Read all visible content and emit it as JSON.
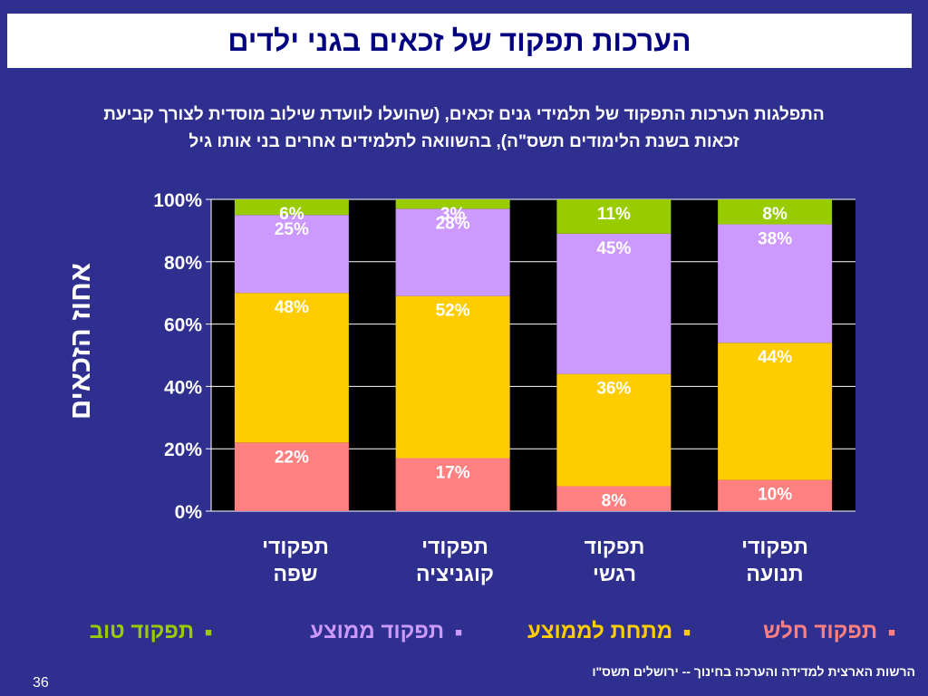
{
  "slide": {
    "title": "הערכות תפקוד של זכאים בגני ילדים",
    "subtitle_line1": "התפלגות הערכות התפקוד של תלמידי גנים זכאים, (שהועלו לוועדת שילוב מוסדית לצורך קביעת",
    "subtitle_line2": "זכאות בשנת הלימודים תשס\"ה), בהשוואה לתלמידים אחרים בני אותו גיל",
    "source": "הרשות הארצית למדידה והערכה בחינוך -- ירושלים תשס\"ו",
    "page_number": "36"
  },
  "chart_data": {
    "type": "bar",
    "stacked": true,
    "ylabel": "אחוז הזכאים",
    "ylim": [
      0,
      100
    ],
    "y_ticks": [
      "0%",
      "20%",
      "40%",
      "60%",
      "80%",
      "100%"
    ],
    "grid": true,
    "category_lines": [
      [
        "תפקודי",
        "שפה"
      ],
      [
        "תפקודי",
        "קוגניציה"
      ],
      [
        "תפקוד",
        "רגשי"
      ],
      [
        "תפקודי",
        "תנועה"
      ]
    ],
    "series": [
      {
        "name": "תפקוד חלש",
        "values": [
          22,
          17,
          8,
          10
        ],
        "labels": [
          "22%",
          "17%",
          "8%",
          "10%"
        ],
        "color": "#ff8080",
        "label_color": "#ffffff"
      },
      {
        "name": "מתחת לממוצע",
        "values": [
          48,
          52,
          36,
          44
        ],
        "labels": [
          "48%",
          "52%",
          "36%",
          "44%"
        ],
        "color": "#ffcc00",
        "label_color": "#ffffff"
      },
      {
        "name": "תפקוד ממוצע",
        "values": [
          25,
          28,
          45,
          38
        ],
        "labels": [
          "25%",
          "28%",
          "45%",
          "38%"
        ],
        "color": "#cc99ff",
        "label_color": "#ffffff"
      },
      {
        "name": "תפקוד טוב",
        "values": [
          6,
          3,
          11,
          8
        ],
        "labels": [
          "6%",
          "3%",
          "11%",
          "8%"
        ],
        "color": "#99cc00",
        "label_color": "#ffffff"
      }
    ],
    "legend": {
      "placement": "bottom",
      "items": [
        {
          "label": "תפקוד חלש",
          "text_color": "#ff8080",
          "bullet_color": "#ff8080"
        },
        {
          "label": "מתחת לממוצע",
          "text_color": "#ffcc00",
          "bullet_color": "#ffcc00"
        },
        {
          "label": "תפקוד ממוצע",
          "text_color": "#cc99ff",
          "bullet_color": "#cc99ff"
        },
        {
          "label": "תפקוד טוב",
          "text_color": "#99cc00",
          "bullet_color": "#99cc00"
        }
      ],
      "bullet_icon": "square-bullet-icon"
    },
    "colors": {
      "background": "#2f2f8f",
      "plot_area": "#000000",
      "grid": "#ffffff",
      "axis_text": "#ffffff"
    }
  }
}
